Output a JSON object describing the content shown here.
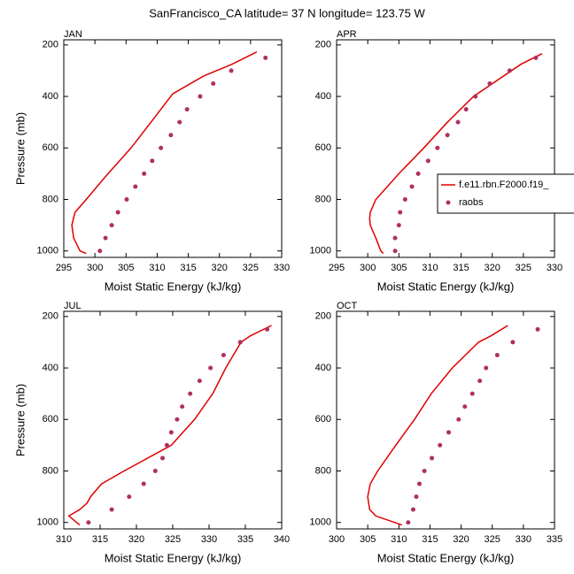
{
  "title": "SanFrancisco_CA  latitude= 37 N longitude= 123.75 W",
  "chart_data": [
    {
      "type": "line",
      "panel_label": "JAN",
      "xlabel": "Moist Static Energy (kJ/kg)",
      "ylabel": "Pressure (mb)",
      "xlim": [
        295,
        330
      ],
      "xticks": [
        295,
        300,
        305,
        310,
        315,
        320,
        325,
        330
      ],
      "ylim": [
        1025,
        180
      ],
      "yticks": [
        200,
        400,
        600,
        800,
        1000
      ],
      "series": [
        {
          "type": "line",
          "color": "#e00000",
          "x": [
            298.6,
            297.6,
            296.6,
            296.3,
            296.8,
            298.6,
            302.1,
            305.8,
            309.0,
            312.5,
            317.5,
            322.0,
            326.0
          ],
          "values": [
            1010,
            1000,
            950,
            900,
            850,
            800,
            700,
            600,
            500,
            390,
            320,
            275,
            227
          ]
        },
        {
          "type": "scatter",
          "color": "#b03060",
          "x": [
            327.4,
            321.9,
            319.0,
            316.9,
            314.8,
            313.6,
            312.2,
            310.6,
            309.2,
            307.9,
            306.5,
            305.1,
            303.7,
            302.7,
            301.7,
            300.8
          ],
          "values": [
            250,
            300,
            350,
            400,
            450,
            500,
            550,
            600,
            650,
            700,
            750,
            800,
            850,
            900,
            950,
            1000
          ]
        }
      ]
    },
    {
      "type": "line",
      "panel_label": "APR",
      "xlabel": "Moist Static Energy (kJ/kg)",
      "legend": "right",
      "xlim": [
        295,
        330
      ],
      "xticks": [
        295,
        300,
        305,
        310,
        315,
        320,
        325,
        330
      ],
      "ylim": [
        1025,
        180
      ],
      "yticks": [
        200,
        400,
        600,
        800,
        1000
      ],
      "series": [
        {
          "type": "line",
          "name": "f.e11.rbn.F2000.f19_",
          "color": "#e00000",
          "x": [
            302.5,
            302.1,
            301.3,
            300.4,
            300.3,
            300.4,
            301.3,
            305.0,
            309.0,
            312.8,
            317.0,
            324.6,
            328.0
          ],
          "values": [
            1010,
            1000,
            950,
            900,
            875,
            850,
            800,
            700,
            600,
            500,
            400,
            275,
            234
          ]
        },
        {
          "type": "scatter",
          "name": "raobs",
          "color": "#b03060",
          "x": [
            327.0,
            322.8,
            319.6,
            317.3,
            315.8,
            314.5,
            312.8,
            311.2,
            309.7,
            308.1,
            307.1,
            306.0,
            305.2,
            305.0,
            304.4,
            304.4
          ],
          "values": [
            250,
            300,
            350,
            400,
            450,
            500,
            550,
            600,
            650,
            700,
            750,
            800,
            850,
            900,
            950,
            1000
          ]
        }
      ]
    },
    {
      "type": "line",
      "panel_label": "JUL",
      "xlabel": "Moist Static Energy (kJ/kg)",
      "ylabel": "Pressure (mb)",
      "xlim": [
        310,
        340
      ],
      "xticks": [
        310,
        315,
        320,
        325,
        330,
        335,
        340
      ],
      "ylim": [
        1025,
        180
      ],
      "yticks": [
        200,
        400,
        600,
        800,
        1000
      ],
      "series": [
        {
          "type": "line",
          "color": "#e00000",
          "x": [
            312.2,
            310.7,
            312.2,
            313.2,
            313.7,
            315.2,
            318.3,
            324.8,
            328.0,
            330.5,
            332.3,
            334.4,
            335.7,
            338.6
          ],
          "values": [
            1010,
            975,
            950,
            925,
            900,
            850,
            800,
            700,
            600,
            500,
            400,
            300,
            275,
            235
          ]
        },
        {
          "type": "scatter",
          "color": "#b03060",
          "x": [
            338.0,
            334.3,
            332.0,
            330.2,
            328.7,
            327.4,
            326.3,
            325.6,
            324.8,
            324.2,
            323.6,
            322.6,
            321.0,
            319.0,
            316.6,
            313.4
          ],
          "values": [
            250,
            300,
            350,
            400,
            450,
            500,
            550,
            600,
            650,
            700,
            750,
            800,
            850,
            900,
            950,
            1000
          ]
        }
      ]
    },
    {
      "type": "line",
      "panel_label": "OCT",
      "xlabel": "Moist Static Energy (kJ/kg)",
      "xlim": [
        300,
        335
      ],
      "xticks": [
        300,
        305,
        310,
        315,
        320,
        325,
        330,
        335
      ],
      "ylim": [
        1025,
        180
      ],
      "yticks": [
        200,
        400,
        600,
        800,
        1000
      ],
      "series": [
        {
          "type": "line",
          "color": "#e00000",
          "x": [
            310.5,
            306.3,
            305.3,
            305.0,
            305.4,
            306.6,
            309.5,
            312.5,
            315.2,
            318.6,
            322.8,
            324.8,
            327.5
          ],
          "values": [
            1010,
            975,
            950,
            900,
            850,
            800,
            700,
            600,
            500,
            400,
            300,
            275,
            235
          ]
        },
        {
          "type": "scatter",
          "color": "#b03060",
          "x": [
            332.3,
            328.3,
            325.8,
            324.0,
            323.0,
            321.8,
            320.6,
            319.6,
            318.0,
            316.6,
            315.3,
            314.1,
            313.3,
            312.8,
            312.3,
            311.5
          ],
          "values": [
            250,
            300,
            350,
            400,
            450,
            500,
            550,
            600,
            650,
            700,
            750,
            800,
            850,
            900,
            950,
            1000
          ]
        }
      ]
    }
  ]
}
